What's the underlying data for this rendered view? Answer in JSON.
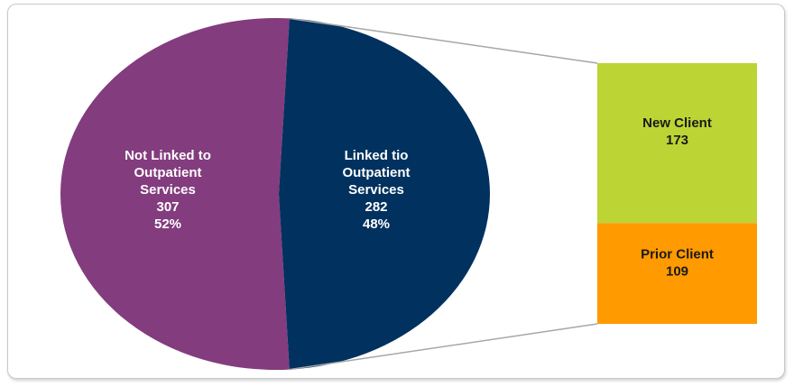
{
  "chart_data": {
    "type": "pie",
    "subtype": "pie-of-bar",
    "slices": [
      {
        "label_lines": [
          "Not Linked to",
          "Outpatient",
          "Services"
        ],
        "value": 307,
        "value_text": "307",
        "percent_text": "52%",
        "color": "#833c7e"
      },
      {
        "label_lines": [
          "Linked tio",
          "Outpatient",
          "Services"
        ],
        "value": 282,
        "value_text": "282",
        "percent_text": "48%",
        "color": "#00315f"
      }
    ],
    "breakdown": {
      "of_slice": "Linked tio Outpatient Services",
      "segments": [
        {
          "label": "New Client",
          "value": 173,
          "value_text": "173",
          "color": "#bcd534"
        },
        {
          "label": "Prior Client",
          "value": 109,
          "value_text": "109",
          "color": "#ff9a00"
        }
      ]
    },
    "connector_color": "#a6a6a6"
  }
}
